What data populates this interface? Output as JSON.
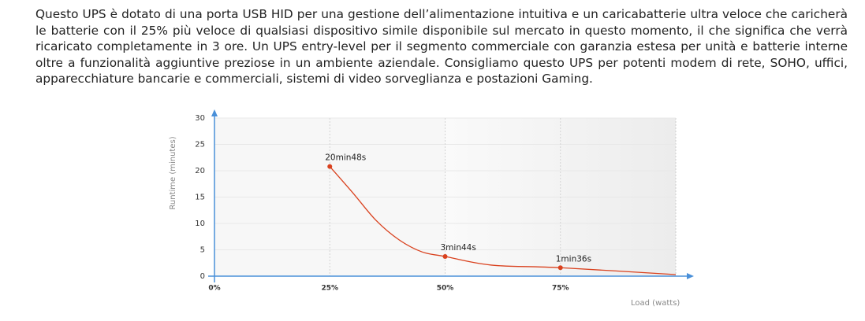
{
  "paragraph": "Questo UPS è dotato di una porta USB HID per una gestione dell’alimentazione intuitiva e un caricabatterie ultra veloce che caricherà le batterie con il 25% più veloce di qualsiasi dispositivo simile disponibile sul mercato in questo momento, il che significa che verrà ricaricato completamente in 3 ore. Un UPS entry-level per il segmento commerciale con garanzia estesa per unità e batterie interne oltre a funzionalità aggiuntive preziose in un ambiente aziendale. Consigliamo questo UPS per potenti modem di rete, SOHO, uffici, apparecchiature bancarie e commerciali, sistemi di video sorveglianza e postazioni Gaming.",
  "chart_data": {
    "type": "line",
    "x_label": "Load (watts)",
    "y_label": "Runtime (minutes)",
    "x": [
      25,
      30,
      35,
      40,
      45,
      50,
      60,
      75,
      100
    ],
    "series": [
      {
        "name": "Runtime",
        "color": "#d9411e",
        "values": [
          20.8,
          15.8,
          10.6,
          6.9,
          4.6,
          3.73,
          2.1,
          1.6,
          0.3
        ],
        "value_labels": [
          "20min48s",
          null,
          null,
          null,
          null,
          "3min44s",
          null,
          "1min36s",
          null
        ]
      }
    ],
    "xlim": [
      0,
      100
    ],
    "ylim": [
      0,
      30
    ],
    "xticks": [
      {
        "value": 0,
        "label": "0%"
      },
      {
        "value": 25,
        "label": "25%"
      },
      {
        "value": 50,
        "label": "50%"
      },
      {
        "value": 75,
        "label": "75%"
      }
    ],
    "yticks": [
      0,
      5,
      10,
      15,
      20,
      25,
      30
    ],
    "grid": true
  }
}
